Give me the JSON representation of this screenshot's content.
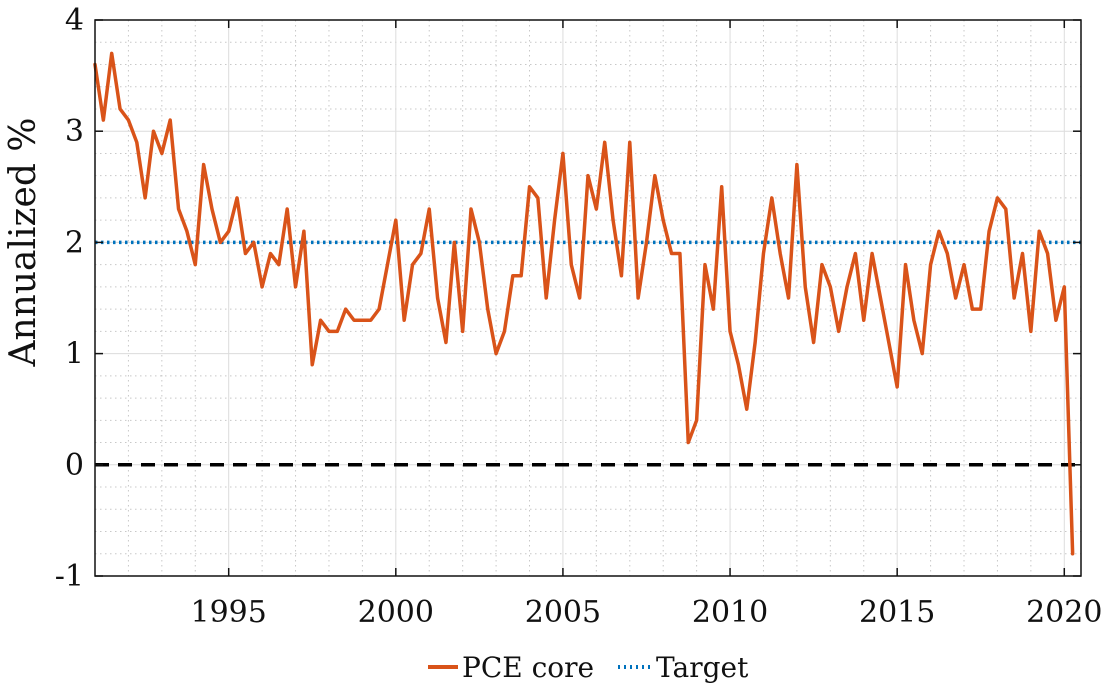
{
  "chart_data": {
    "type": "line",
    "title": "",
    "xlabel": "",
    "ylabel": "Annualized %",
    "xlim": [
      1991.0,
      2020.5
    ],
    "ylim": [
      -1,
      4
    ],
    "xticks": [
      1995,
      2000,
      2005,
      2010,
      2015,
      2020
    ],
    "yticks": [
      -1,
      0,
      1,
      2,
      3,
      4
    ],
    "grid": true,
    "minor_grid": true,
    "legend_position": "bottom",
    "series": [
      {
        "name": "PCE core",
        "color": "#d95319",
        "x": [
          1991.0,
          1991.25,
          1991.5,
          1991.75,
          1992.0,
          1992.25,
          1992.5,
          1992.75,
          1993.0,
          1993.25,
          1993.5,
          1993.75,
          1994.0,
          1994.25,
          1994.5,
          1994.75,
          1995.0,
          1995.25,
          1995.5,
          1995.75,
          1996.0,
          1996.25,
          1996.5,
          1996.75,
          1997.0,
          1997.25,
          1997.5,
          1997.75,
          1998.0,
          1998.25,
          1998.5,
          1998.75,
          1999.0,
          1999.25,
          1999.5,
          1999.75,
          2000.0,
          2000.25,
          2000.5,
          2000.75,
          2001.0,
          2001.25,
          2001.5,
          2001.75,
          2002.0,
          2002.25,
          2002.5,
          2002.75,
          2003.0,
          2003.25,
          2003.5,
          2003.75,
          2004.0,
          2004.25,
          2004.5,
          2004.75,
          2005.0,
          2005.25,
          2005.5,
          2005.75,
          2006.0,
          2006.25,
          2006.5,
          2006.75,
          2007.0,
          2007.25,
          2007.5,
          2007.75,
          2008.0,
          2008.25,
          2008.5,
          2008.75,
          2009.0,
          2009.25,
          2009.5,
          2009.75,
          2010.0,
          2010.25,
          2010.5,
          2010.75,
          2011.0,
          2011.25,
          2011.5,
          2011.75,
          2012.0,
          2012.25,
          2012.5,
          2012.75,
          2013.0,
          2013.25,
          2013.5,
          2013.75,
          2014.0,
          2014.25,
          2014.5,
          2014.75,
          2015.0,
          2015.25,
          2015.5,
          2015.75,
          2016.0,
          2016.25,
          2016.5,
          2016.75,
          2017.0,
          2017.25,
          2017.5,
          2017.75,
          2018.0,
          2018.25,
          2018.5,
          2018.75,
          2019.0,
          2019.25,
          2019.5,
          2019.75,
          2020.0,
          2020.25
        ],
        "values": [
          3.6,
          3.1,
          3.7,
          3.2,
          3.1,
          2.9,
          2.4,
          3.0,
          2.8,
          3.1,
          2.3,
          2.1,
          1.8,
          2.7,
          2.3,
          2.0,
          2.1,
          2.4,
          1.9,
          2.0,
          1.6,
          1.9,
          1.8,
          2.3,
          1.6,
          2.1,
          0.9,
          1.3,
          1.2,
          1.2,
          1.4,
          1.3,
          1.3,
          1.3,
          1.4,
          1.8,
          2.2,
          1.3,
          1.8,
          1.9,
          2.3,
          1.5,
          1.1,
          2.0,
          1.2,
          2.3,
          2.0,
          1.4,
          1.0,
          1.2,
          1.7,
          1.7,
          2.5,
          2.4,
          1.5,
          2.2,
          2.8,
          1.8,
          1.5,
          2.6,
          2.3,
          2.9,
          2.2,
          1.7,
          2.9,
          1.5,
          2.0,
          2.6,
          2.2,
          1.9,
          1.9,
          0.2,
          0.4,
          1.8,
          1.4,
          2.5,
          1.2,
          0.9,
          0.5,
          1.1,
          1.9,
          2.4,
          1.9,
          1.5,
          2.7,
          1.6,
          1.1,
          1.8,
          1.6,
          1.2,
          1.6,
          1.9,
          1.3,
          1.9,
          1.5,
          1.1,
          0.7,
          1.8,
          1.3,
          1.0,
          1.8,
          2.1,
          1.9,
          1.5,
          1.8,
          1.4,
          1.4,
          2.1,
          2.4,
          2.3,
          1.5,
          1.9,
          1.2,
          2.1,
          1.9,
          1.3,
          1.6,
          -0.8
        ]
      },
      {
        "name": "Target",
        "color": "#0072bd",
        "style": "dotted",
        "value": 2
      }
    ],
    "reference_lines": [
      {
        "value": 0,
        "color": "#000000",
        "style": "dashed"
      }
    ]
  }
}
